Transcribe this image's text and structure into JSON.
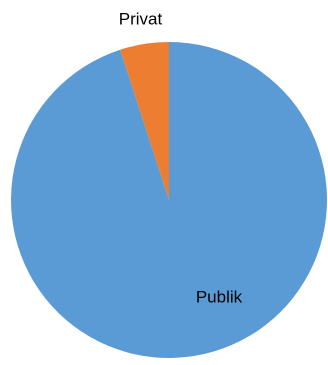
{
  "chart_data": {
    "type": "pie",
    "categories": [
      "Publik",
      "Privat"
    ],
    "values": [
      95,
      5
    ],
    "colors": [
      "#5b9bd5",
      "#ed7d31"
    ]
  }
}
